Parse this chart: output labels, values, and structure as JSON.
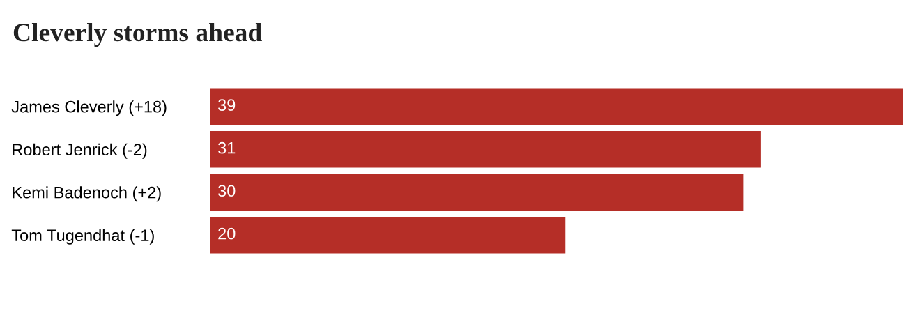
{
  "chart_data": {
    "type": "bar",
    "orientation": "horizontal",
    "title": "Cleverly storms ahead",
    "categories": [
      "James Cleverly (+18)",
      "Robert Jenrick (-2)",
      "Kemi Badenoch (+2)",
      "Tom Tugendhat (-1)"
    ],
    "values": [
      39,
      31,
      30,
      20
    ],
    "color": "#b52e27",
    "data_labels": true,
    "grid": false,
    "legend": false
  }
}
